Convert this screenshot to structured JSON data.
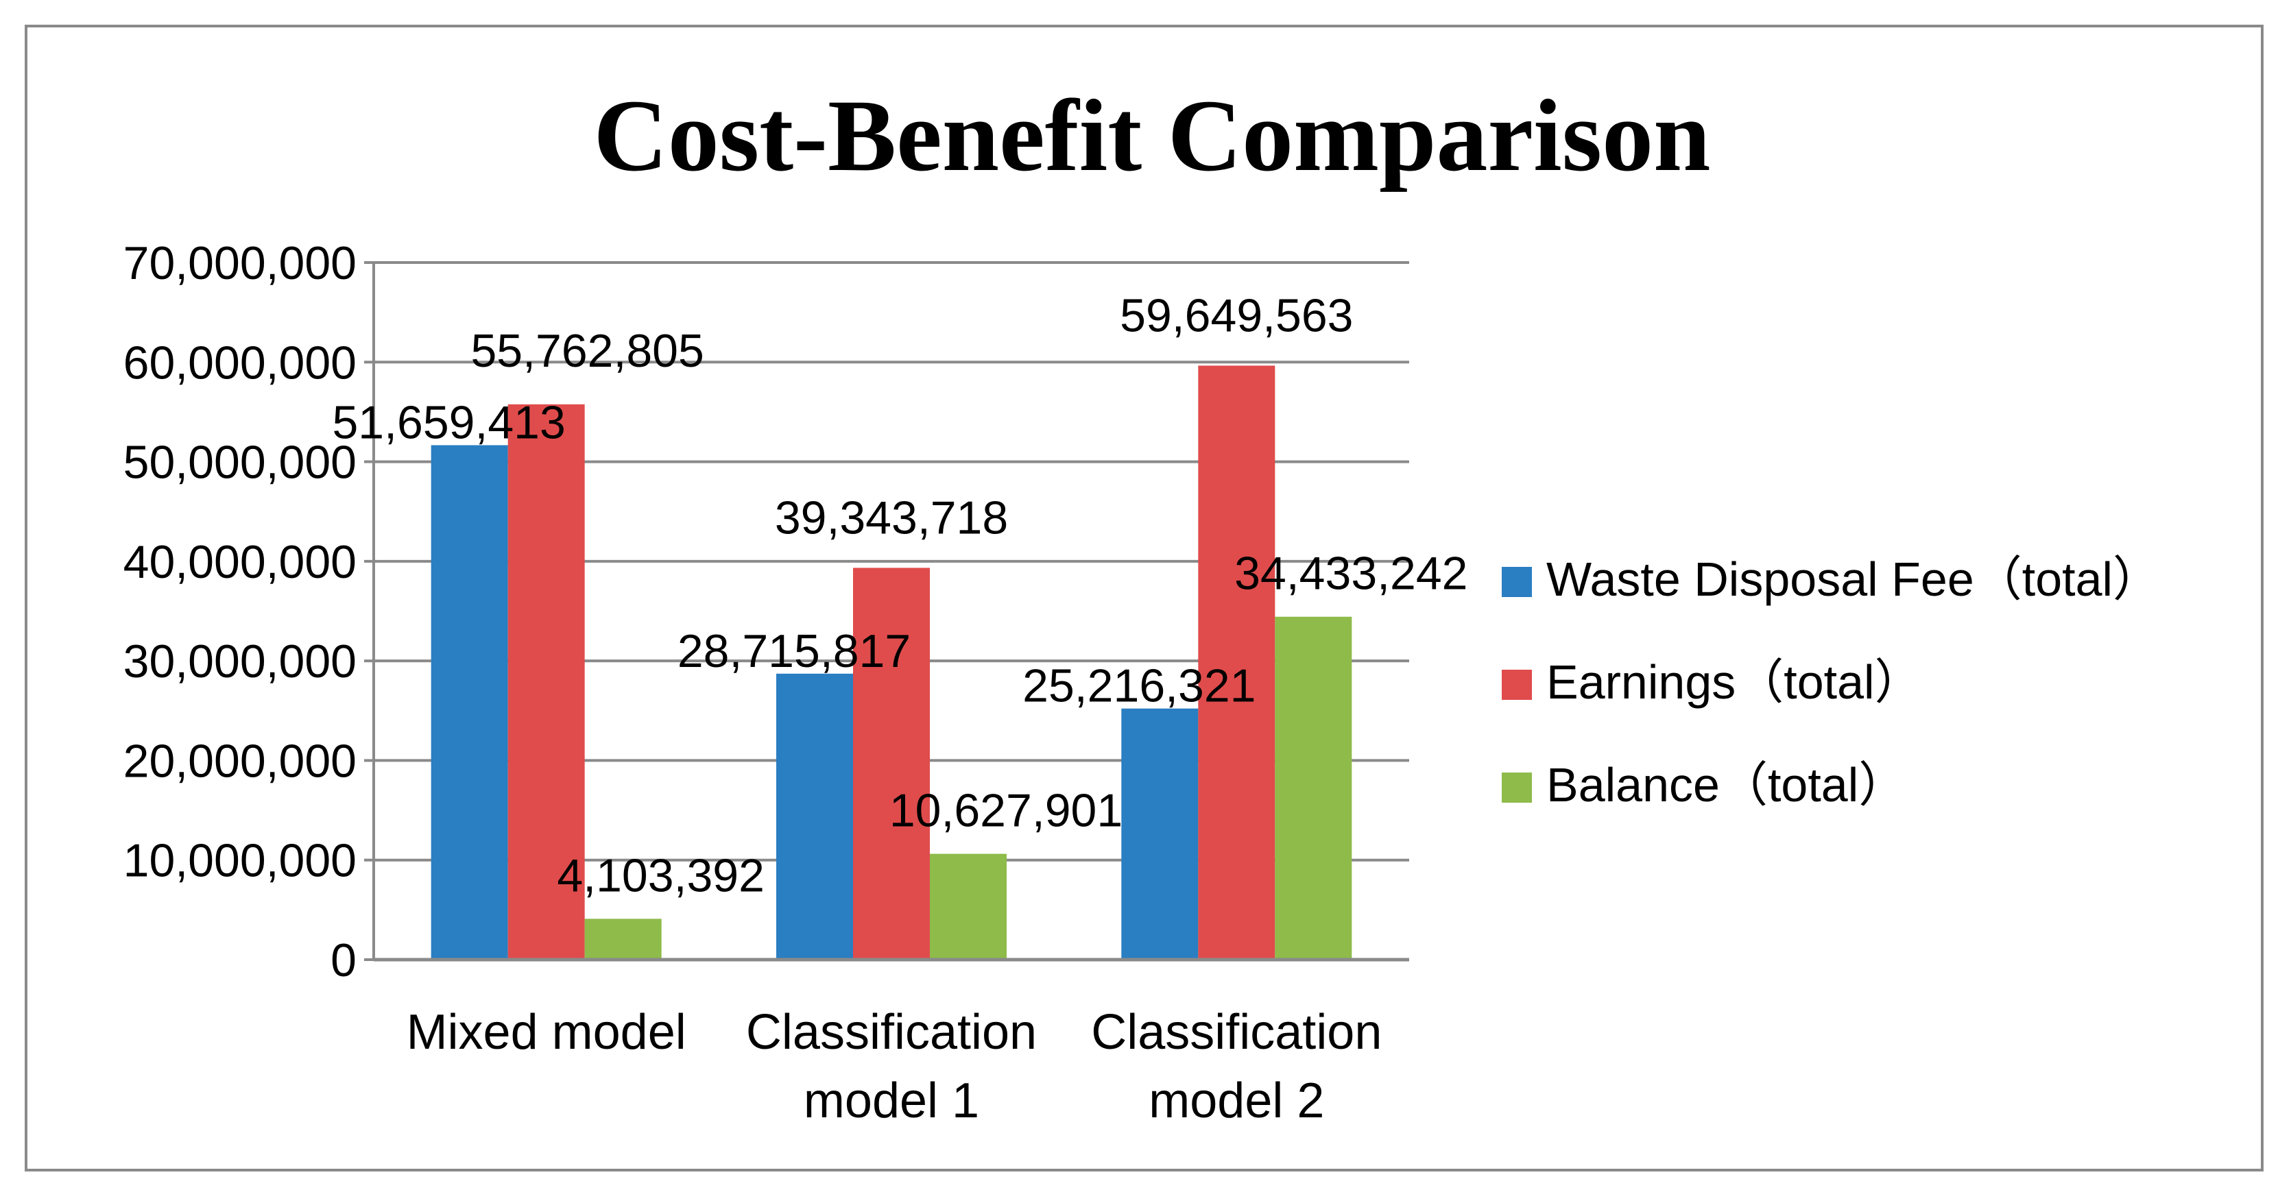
{
  "chart_data": {
    "type": "bar",
    "title": "Cost-Benefit Comparison",
    "xlabel": "",
    "ylabel": "",
    "ylim": [
      0,
      70000000
    ],
    "yticks": [
      0,
      10000000,
      20000000,
      30000000,
      40000000,
      50000000,
      60000000,
      70000000
    ],
    "ytick_labels": [
      "0",
      "10,000,000",
      "20,000,000",
      "30,000,000",
      "40,000,000",
      "50,000,000",
      "60,000,000",
      "70,000,000"
    ],
    "grid": true,
    "legend_position": "right",
    "categories": [
      [
        "Mixed model"
      ],
      [
        "Classification",
        "model 1"
      ],
      [
        "Classification",
        "model 2"
      ]
    ],
    "series": [
      {
        "name": "Waste Disposal Fee（total）",
        "color": "#2A7EC2",
        "values": [
          51659413,
          28715817,
          25216321
        ],
        "labels": [
          "51,659,413",
          "28,715,817",
          "25,216,321"
        ]
      },
      {
        "name": "Earnings（total）",
        "color": "#E04C4C",
        "values": [
          55762805,
          39343718,
          59649563
        ],
        "labels": [
          "55,762,805",
          "39,343,718",
          "59,649,563"
        ]
      },
      {
        "name": "Balance（total）",
        "color": "#8EBB4A",
        "values": [
          4103392,
          10627901,
          34433242
        ],
        "labels": [
          "4,103,392",
          "10,627,901",
          "34,433,242"
        ]
      }
    ]
  },
  "colors": {
    "grid": "#8a8a8a",
    "axis": "#8a8a8a",
    "frame": "#8a8a8a"
  }
}
